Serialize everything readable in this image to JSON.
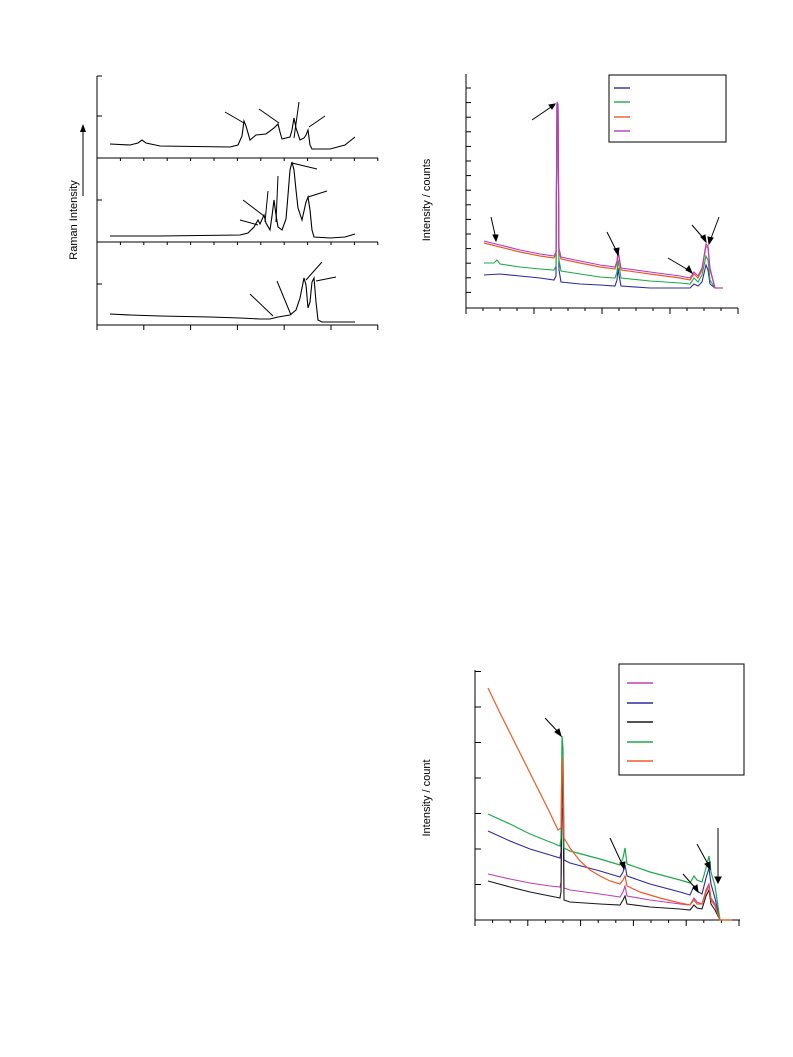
{
  "chart_data": [
    {
      "type": "line",
      "ylabel": "Raman Intensity",
      "legend": "none",
      "grid": false,
      "subplots": 3,
      "series": [
        {
          "color": "#000000",
          "values": []
        },
        {
          "color": "#000000",
          "values": []
        },
        {
          "color": "#000000",
          "values": []
        }
      ]
    },
    {
      "type": "line",
      "ylabel": "Intensity / counts",
      "legend": "top-right",
      "grid": false,
      "series": [
        {
          "color": "#2c2c9c",
          "values": []
        },
        {
          "color": "#1faa4a",
          "values": []
        },
        {
          "color": "#f05a28",
          "values": []
        },
        {
          "color": "#b43cc8",
          "values": []
        }
      ]
    },
    {
      "type": "line",
      "ylabel": "Intensity / count",
      "legend": "top-right",
      "grid": false,
      "series": [
        {
          "color": "#c040b0",
          "values": []
        },
        {
          "color": "#2c2c9c",
          "values": []
        },
        {
          "color": "#1a1a1a",
          "values": []
        },
        {
          "color": "#1faa4a",
          "values": []
        },
        {
          "color": "#f05a28",
          "values": []
        }
      ]
    }
  ]
}
